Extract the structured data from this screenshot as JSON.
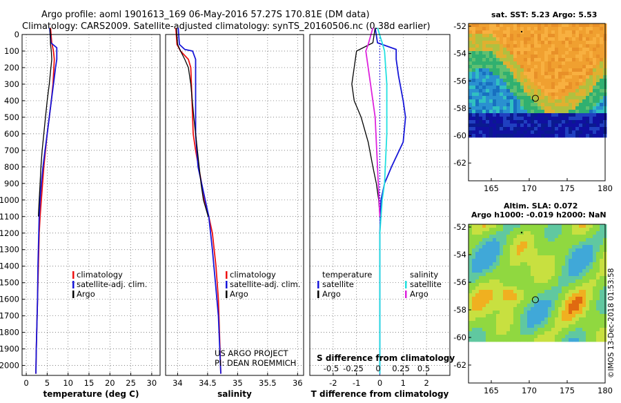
{
  "header": {
    "line1": "Argo profile: aoml 1901613_169 06-May-2016 57.27S 170.81E (DM data)",
    "line2": "Climatology: CARS2009. Satellite-adjusted climatology: synTS_20160506.nc (0.38d earlier)"
  },
  "colors": {
    "climatology": "#ee1111",
    "satellite": "#1515d8",
    "argo": "#000000",
    "sat_salinity": "#22e0e0",
    "argo_salinity": "#dd22dd"
  },
  "chart_data": [
    {
      "type": "line",
      "name": "temperature-profile",
      "xlabel": "temperature (deg C)",
      "ylabel": "",
      "xlim": [
        -1,
        32
      ],
      "ylim": [
        2060,
        0
      ],
      "x_ticks": [
        0,
        5,
        10,
        15,
        20,
        25,
        30
      ],
      "y_ticks": [
        0,
        100,
        200,
        300,
        400,
        500,
        600,
        700,
        800,
        900,
        1000,
        1100,
        1200,
        1300,
        1400,
        1500,
        1600,
        1700,
        1800,
        1900,
        2000
      ],
      "y_tick_labels": [
        "0",
        "100",
        "200",
        "300",
        "400",
        "500",
        "600",
        "700",
        "800",
        "900",
        "1000",
        "1100",
        "1200",
        "1300",
        "1400",
        "1500",
        "1600",
        "1700",
        "1800",
        "1900",
        "2000"
      ],
      "legend": [
        "climatology",
        "satellite-adj. clim.",
        "Argo"
      ],
      "series": [
        {
          "name": "climatology",
          "color": "#ee1111",
          "x": [
            5.8,
            6.1,
            6.5,
            6.7,
            6.6,
            6.4,
            6.0,
            5.5,
            5.0,
            4.6,
            4.2,
            3.9,
            3.6,
            3.3,
            3.1,
            2.9,
            2.8,
            2.7,
            2.6,
            2.5,
            2.4,
            2.3
          ],
          "y": [
            -40,
            50,
            100,
            150,
            200,
            300,
            400,
            500,
            600,
            700,
            800,
            900,
            1000,
            1100,
            1200,
            1400,
            1500,
            1600,
            1700,
            1800,
            1900,
            2050
          ]
        },
        {
          "name": "satellite-adj. clim.",
          "color": "#1515d8",
          "x": [
            5.6,
            5.9,
            7.3,
            7.3,
            7.0,
            6.5,
            6.0,
            5.5,
            5.0,
            4.5,
            4.0,
            3.6,
            3.3,
            3.1,
            3.0,
            2.8,
            2.7,
            2.6,
            2.5,
            2.4,
            2.3
          ],
          "y": [
            -40,
            50,
            80,
            150,
            200,
            300,
            400,
            500,
            600,
            700,
            800,
            900,
            1000,
            1100,
            1200,
            1400,
            1600,
            1700,
            1800,
            1900,
            2050
          ]
        },
        {
          "name": "Argo",
          "color": "#000000",
          "x": [
            5.7,
            5.8,
            6.0,
            6.1,
            5.9,
            5.5,
            5.0,
            4.6,
            4.2,
            3.8,
            3.5,
            3.3,
            3.1,
            2.9
          ],
          "y": [
            -40,
            60,
            100,
            150,
            200,
            300,
            400,
            500,
            600,
            700,
            800,
            900,
            1000,
            1100
          ]
        }
      ]
    },
    {
      "type": "line",
      "name": "salinity-profile",
      "xlabel": "salinity",
      "ylabel": "",
      "xlim": [
        33.8,
        36.1
      ],
      "ylim": [
        2060,
        0
      ],
      "x_ticks": [
        34,
        34.5,
        35,
        35.5,
        36
      ],
      "legend": [
        "climatology",
        "satellite-adj. clim.",
        "Argo"
      ],
      "annotations": [
        "US ARGO PROJECT",
        "PI: DEAN ROEMMICH"
      ],
      "series": [
        {
          "name": "climatology",
          "color": "#ee1111",
          "x": [
            33.97,
            33.99,
            34.05,
            34.18,
            34.22,
            34.24,
            34.26,
            34.3,
            34.35,
            34.4,
            34.45,
            34.52,
            34.58,
            34.64,
            34.68,
            34.72
          ],
          "y": [
            -40,
            60,
            100,
            150,
            200,
            400,
            600,
            700,
            800,
            900,
            1000,
            1100,
            1200,
            1400,
            1600,
            2050
          ]
        },
        {
          "name": "satellite-adj. clim.",
          "color": "#1515d8",
          "x": [
            34.01,
            34.03,
            34.12,
            34.25,
            34.3,
            34.3,
            34.3,
            34.34,
            34.4,
            34.46,
            34.52,
            34.58,
            34.63,
            34.68,
            34.72
          ],
          "y": [
            -40,
            60,
            90,
            100,
            150,
            250,
            600,
            800,
            900,
            1000,
            1100,
            1300,
            1500,
            1700,
            2050
          ]
        },
        {
          "name": "Argo",
          "color": "#000000",
          "x": [
            33.98,
            34.0,
            34.05,
            34.12,
            34.18,
            34.22,
            34.27,
            34.33,
            34.39,
            34.43,
            34.47,
            34.51
          ],
          "y": [
            -40,
            60,
            100,
            150,
            200,
            300,
            500,
            700,
            900,
            1000,
            1050,
            1100
          ]
        }
      ]
    },
    {
      "type": "line",
      "name": "difference-profile",
      "xlabel": "T difference from climatology",
      "x2label": "S difference from climatology",
      "ylabel": "",
      "xlim": [
        -3,
        3
      ],
      "ylim": [
        2060,
        0
      ],
      "x_ticks": [
        -2,
        -1,
        0,
        1,
        2
      ],
      "x2_tick_labels": [
        "-0.5",
        "-0.25",
        "0",
        "0.25",
        "0.5"
      ],
      "legend_left_title": "temperature",
      "legend_right_title": "salinity",
      "legend_left": [
        "satellite",
        "Argo"
      ],
      "legend_right": [
        "satellite",
        "Argo"
      ],
      "series": [
        {
          "name": "T satellite",
          "color": "#1515d8",
          "x": [
            -0.2,
            -0.1,
            0.7,
            0.7,
            0.8,
            1.0,
            1.1,
            1.0,
            0.5,
            0.2,
            0.05,
            0.0,
            0.0
          ],
          "y": [
            -40,
            50,
            90,
            150,
            250,
            400,
            500,
            650,
            800,
            900,
            1000,
            1200,
            2050
          ]
        },
        {
          "name": "T Argo",
          "color": "#000000",
          "x": [
            -0.2,
            -0.3,
            -1.0,
            -1.1,
            -1.2,
            -1.1,
            -0.8,
            -0.5,
            -0.3,
            -0.15,
            -0.05,
            0.0
          ],
          "y": [
            -40,
            50,
            100,
            200,
            300,
            400,
            500,
            650,
            800,
            900,
            1000,
            1100
          ]
        },
        {
          "name": "S satellite",
          "color": "#22e0e0",
          "x": [
            -0.1,
            0.1,
            0.2,
            0.3,
            0.3,
            0.2,
            0.1,
            0.0,
            0.0
          ],
          "y": [
            -40,
            50,
            100,
            300,
            600,
            900,
            1000,
            1200,
            2050
          ]
        },
        {
          "name": "S Argo",
          "color": "#dd22dd",
          "x": [
            -0.3,
            -0.5,
            -0.6,
            -0.4,
            -0.2,
            -0.1,
            0.0
          ],
          "y": [
            -40,
            60,
            100,
            300,
            500,
            800,
            1100
          ]
        }
      ]
    },
    {
      "type": "heatmap",
      "name": "sst-map",
      "title": "sat. SST: 5.23 Argo: 5.53",
      "xlim": [
        162,
        180
      ],
      "ylim": [
        -63.3,
        -51.8
      ],
      "x_ticks": [
        165,
        170,
        175,
        180
      ],
      "y_ticks": [
        -52,
        -54,
        -56,
        -58,
        -60,
        -62
      ],
      "marker": {
        "lon": 170.81,
        "lat": -57.27
      }
    },
    {
      "type": "heatmap",
      "name": "sla-map",
      "title": "Altim. SLA: 0.072",
      "subtitle": "Argo h1000: -0.019 h2000: NaN",
      "xlim": [
        162,
        180
      ],
      "ylim": [
        -63.3,
        -51.8
      ],
      "x_ticks": [
        165,
        170,
        175,
        180
      ],
      "y_ticks": [
        -52,
        -54,
        -56,
        -58,
        -60,
        -62
      ],
      "marker": {
        "lon": 170.81,
        "lat": -57.27
      }
    }
  ],
  "footer": {
    "watermark": "©IMOS 13-Dec-2018 01:53:58"
  }
}
